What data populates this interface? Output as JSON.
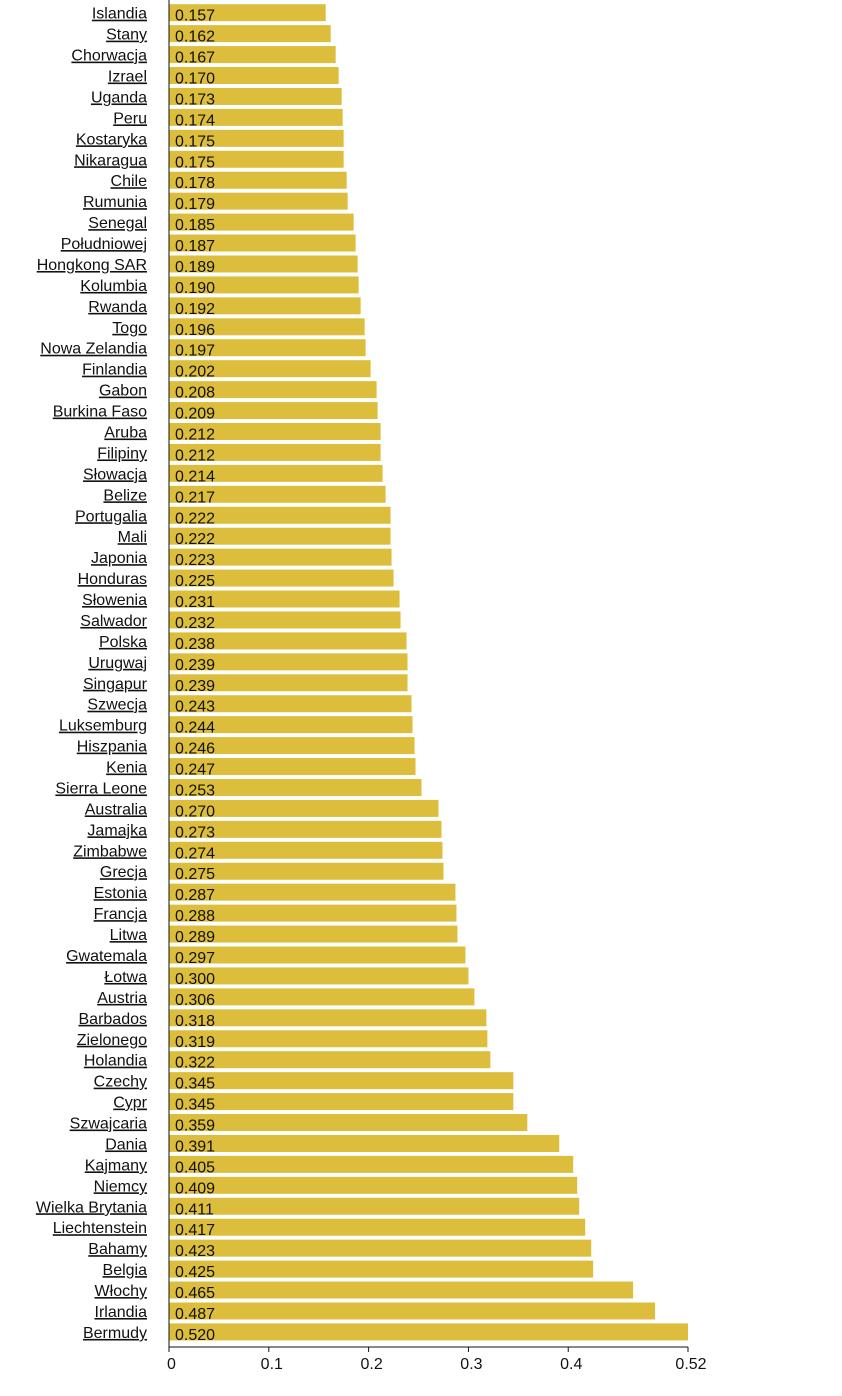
{
  "chart_data": {
    "type": "bar",
    "orientation": "horizontal",
    "bar_color": "#dcbe3c",
    "categories": [
      "Islandia",
      "Stany",
      "Chorwacja",
      "Izrael",
      "Uganda",
      "Peru",
      "Kostaryka",
      "Nikaragua",
      "Chile",
      "Rumunia",
      "Senegal",
      "Południowej",
      "Hongkong SAR",
      "Kolumbia",
      "Rwanda",
      "Togo",
      "Nowa Zelandia",
      "Finlandia",
      "Gabon",
      "Burkina Faso",
      "Aruba",
      "Filipiny",
      "Słowacja",
      "Belize",
      "Portugalia",
      "Mali",
      "Japonia",
      "Honduras",
      "Słowenia",
      "Salwador",
      "Polska",
      "Urugwaj",
      "Singapur",
      "Szwecja",
      "Luksemburg",
      "Hiszpania",
      "Kenia",
      "Sierra Leone",
      "Australia",
      "Jamajka",
      "Zimbabwe",
      "Grecja",
      "Estonia",
      "Francja",
      "Litwa",
      "Gwatemala",
      "Łotwa",
      "Austria",
      "Barbados",
      "Zielonego",
      "Holandia",
      "Czechy",
      "Cypr",
      "Szwajcaria",
      "Dania",
      "Kajmany",
      "Niemcy",
      "Wielka Brytania",
      "Liechtenstein",
      "Bahamy",
      "Belgia",
      "Włochy",
      "Irlandia",
      "Bermudy"
    ],
    "values": [
      0.157,
      0.162,
      0.167,
      0.17,
      0.173,
      0.174,
      0.175,
      0.175,
      0.178,
      0.179,
      0.185,
      0.187,
      0.189,
      0.19,
      0.192,
      0.196,
      0.197,
      0.202,
      0.208,
      0.209,
      0.212,
      0.212,
      0.214,
      0.217,
      0.222,
      0.222,
      0.223,
      0.225,
      0.231,
      0.232,
      0.238,
      0.239,
      0.239,
      0.243,
      0.244,
      0.246,
      0.247,
      0.253,
      0.27,
      0.273,
      0.274,
      0.275,
      0.287,
      0.288,
      0.289,
      0.297,
      0.3,
      0.306,
      0.318,
      0.319,
      0.322,
      0.345,
      0.345,
      0.359,
      0.391,
      0.405,
      0.409,
      0.411,
      0.417,
      0.423,
      0.425,
      0.465,
      0.487,
      0.52
    ],
    "value_labels": [
      "0.157",
      "0.162",
      "0.167",
      "0.170",
      "0.173",
      "0.174",
      "0.175",
      "0.175",
      "0.178",
      "0.179",
      "0.185",
      "0.187",
      "0.189",
      "0.190",
      "0.192",
      "0.196",
      "0.197",
      "0.202",
      "0.208",
      "0.209",
      "0.212",
      "0.212",
      "0.214",
      "0.217",
      "0.222",
      "0.222",
      "0.223",
      "0.225",
      "0.231",
      "0.232",
      "0.238",
      "0.239",
      "0.239",
      "0.243",
      "0.244",
      "0.246",
      "0.247",
      "0.253",
      "0.270",
      "0.273",
      "0.274",
      "0.275",
      "0.287",
      "0.288",
      "0.289",
      "0.297",
      "0.300",
      "0.306",
      "0.318",
      "0.319",
      "0.322",
      "0.345",
      "0.345",
      "0.359",
      "0.391",
      "0.405",
      "0.409",
      "0.411",
      "0.417",
      "0.423",
      "0.425",
      "0.465",
      "0.487",
      "0.520"
    ],
    "xlim": [
      0,
      0.52
    ],
    "x_ticks": [
      0,
      0.1,
      0.2,
      0.3,
      0.4,
      0.52
    ],
    "x_tick_labels": [
      "0",
      "0.1",
      "0.2",
      "0.3",
      "0.4",
      "0.52"
    ],
    "grid": false,
    "legend": "none",
    "title": "",
    "xlabel": "",
    "ylabel": ""
  }
}
